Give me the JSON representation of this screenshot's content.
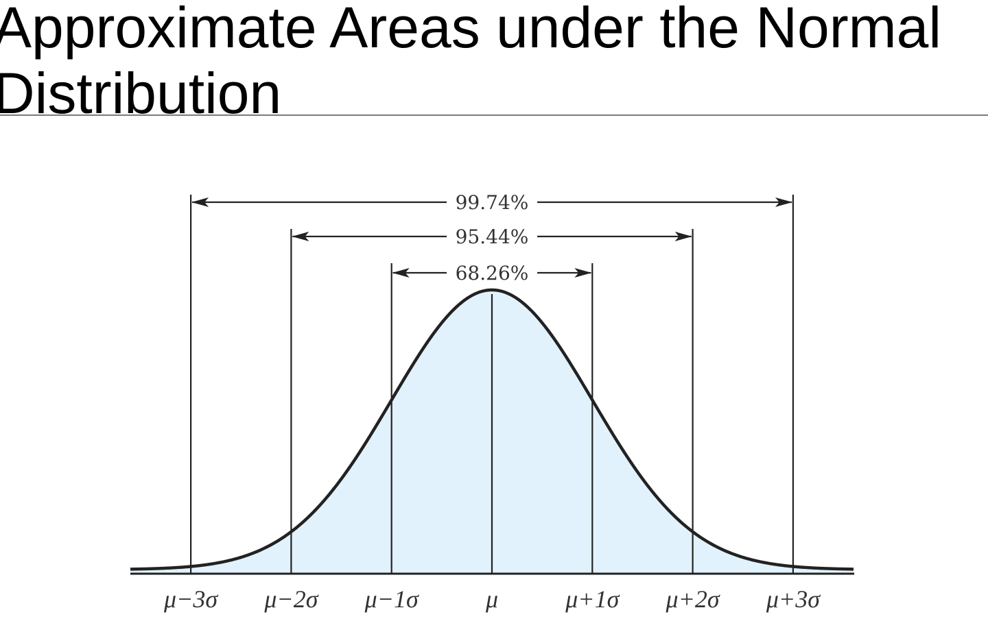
{
  "title": "Approximate Areas under the Normal Distribution",
  "chart_data": {
    "type": "area",
    "curve": "normal-distribution",
    "fill_color": "#e1f2fd",
    "line_color": "#222222",
    "x_ticks": [
      -3,
      -2,
      -1,
      0,
      1,
      2,
      3
    ],
    "x_tick_labels": [
      "μ−3σ",
      "μ−2σ",
      "μ−1σ",
      "μ",
      "μ+1σ",
      "μ+2σ",
      "μ+3σ"
    ],
    "intervals": [
      {
        "from": -3,
        "to": 3,
        "label": "99.74%"
      },
      {
        "from": -2,
        "to": 2,
        "label": "95.44%"
      },
      {
        "from": -1,
        "to": 1,
        "label": "68.26%"
      }
    ]
  }
}
